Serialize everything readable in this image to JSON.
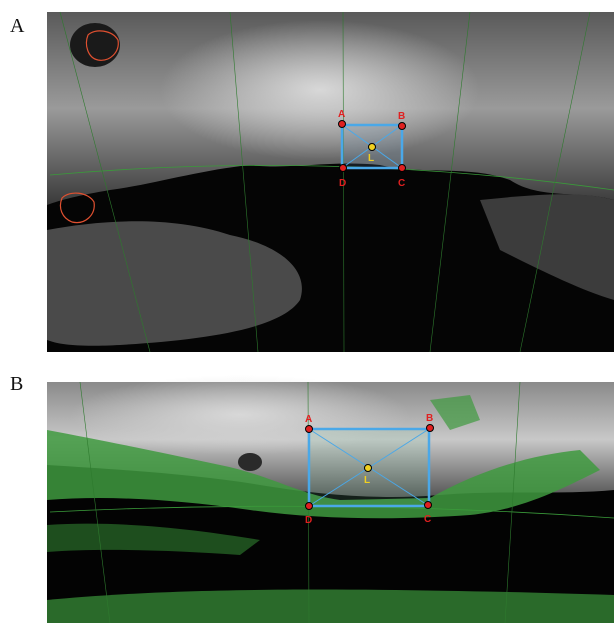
{
  "panels": [
    {
      "label": "A",
      "points": [
        {
          "label": "A"
        },
        {
          "label": "B"
        },
        {
          "label": "C"
        },
        {
          "label": "D"
        },
        {
          "label": "L"
        }
      ]
    },
    {
      "label": "B",
      "points": [
        {
          "label": "A"
        },
        {
          "label": "B"
        },
        {
          "label": "C"
        },
        {
          "label": "D"
        },
        {
          "label": "L"
        }
      ]
    }
  ]
}
